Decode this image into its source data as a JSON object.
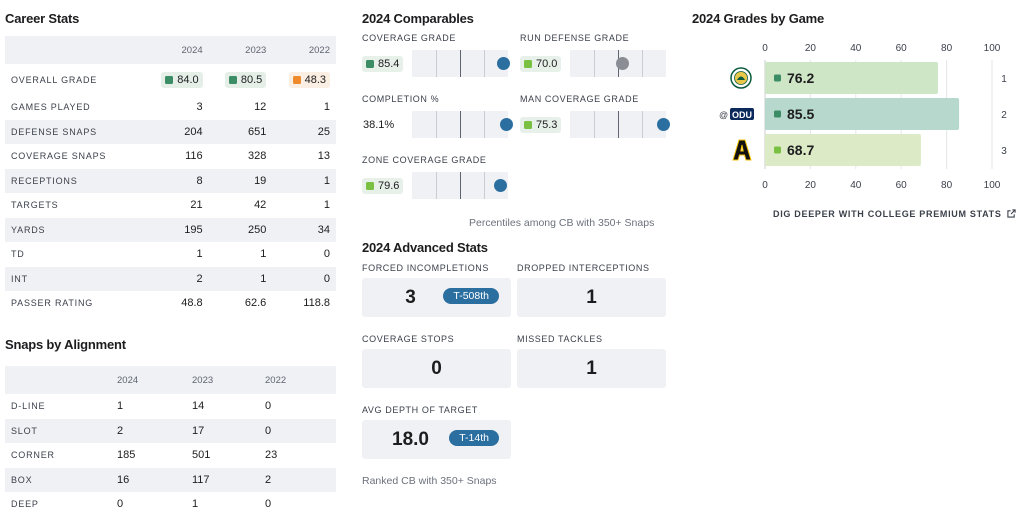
{
  "career": {
    "title": "Career Stats",
    "years": [
      "2024",
      "2023",
      "2022"
    ],
    "overall": {
      "label": "OVERALL GRADE",
      "values": [
        {
          "value": "84.0",
          "color": "#3a8d64",
          "bg": "#e5efe8"
        },
        {
          "value": "80.5",
          "color": "#3a8d64",
          "bg": "#e5efe8"
        },
        {
          "value": "48.3",
          "color": "#ef8a2d",
          "bg": "#fbeee2"
        }
      ]
    },
    "rows": [
      {
        "label": "GAMES PLAYED",
        "values": [
          "3",
          "12",
          "1"
        ]
      },
      {
        "label": "DEFENSE SNAPS",
        "values": [
          "204",
          "651",
          "25"
        ]
      },
      {
        "label": "COVERAGE SNAPS",
        "values": [
          "116",
          "328",
          "13"
        ]
      },
      {
        "label": "RECEPTIONS",
        "values": [
          "8",
          "19",
          "1"
        ]
      },
      {
        "label": "TARGETS",
        "values": [
          "21",
          "42",
          "1"
        ]
      },
      {
        "label": "YARDS",
        "values": [
          "195",
          "250",
          "34"
        ]
      },
      {
        "label": "TD",
        "values": [
          "1",
          "1",
          "0"
        ]
      },
      {
        "label": "INT",
        "values": [
          "2",
          "1",
          "0"
        ]
      },
      {
        "label": "PASSER RATING",
        "values": [
          "48.8",
          "62.6",
          "118.8"
        ]
      }
    ]
  },
  "snaps": {
    "title": "Snaps by Alignment",
    "years": [
      "2024",
      "2023",
      "2022"
    ],
    "rows": [
      {
        "label": "D-LINE",
        "values": [
          "1",
          "14",
          "0"
        ]
      },
      {
        "label": "SLOT",
        "values": [
          "2",
          "17",
          "0"
        ]
      },
      {
        "label": "CORNER",
        "values": [
          "185",
          "501",
          "23"
        ]
      },
      {
        "label": "BOX",
        "values": [
          "16",
          "117",
          "2"
        ]
      },
      {
        "label": "DEEP",
        "values": [
          "0",
          "1",
          "0"
        ]
      }
    ]
  },
  "comparables": {
    "title": "2024 Comparables",
    "items": [
      {
        "label": "COVERAGE GRADE",
        "value": "85.4",
        "sq_color": "#3a8d64",
        "percentile": 0.95,
        "dot": "blue"
      },
      {
        "label": "RUN DEFENSE GRADE",
        "value": "70.0",
        "sq_color": "#7ac143",
        "percentile": 0.55,
        "dot": "gray"
      },
      {
        "label": "COMPLETION %",
        "value": "38.1%",
        "sq_color": "",
        "percentile": 0.98,
        "dot": "blue"
      },
      {
        "label": "MAN COVERAGE GRADE",
        "value": "75.3",
        "sq_color": "#7ac143",
        "percentile": 0.97,
        "dot": "blue"
      },
      {
        "label": "ZONE COVERAGE GRADE",
        "value": "79.6",
        "sq_color": "#7ac143",
        "percentile": 0.92,
        "dot": "blue"
      }
    ],
    "note": "Percentiles among CB with 350+ Snaps"
  },
  "advanced": {
    "title": "2024 Advanced Stats",
    "items": [
      {
        "label": "FORCED INCOMPLETIONS",
        "value": "3",
        "rank": "T-508th"
      },
      {
        "label": "DROPPED INTERCEPTIONS",
        "value": "1",
        "rank": ""
      },
      {
        "label": "COVERAGE STOPS",
        "value": "0",
        "rank": ""
      },
      {
        "label": "MISSED TACKLES",
        "value": "1",
        "rank": ""
      },
      {
        "label": "AVG DEPTH OF TARGET",
        "value": "18.0",
        "rank": "T-14th"
      }
    ],
    "note": "Ranked CB with 350+ Snaps"
  },
  "grades_by_game": {
    "title": "2024 Grades by Game",
    "link": "DIG DEEPER WITH COLLEGE PREMIUM STATS",
    "chart_data": {
      "type": "bar",
      "orientation": "horizontal",
      "xlim": [
        0,
        100
      ],
      "ticks": [
        "0",
        "20",
        "40",
        "60",
        "80",
        "100"
      ],
      "games": [
        {
          "week": "1",
          "prefix": "",
          "opponent_logo": "team-seal-logo",
          "value": 76.2,
          "label": "76.2",
          "bar_color": "#cfe6c6",
          "sq_color": "#3a8d64"
        },
        {
          "week": "2",
          "prefix": "@",
          "opponent_logo": "odu-logo",
          "opponent_text": "ODU",
          "value": 85.5,
          "label": "85.5",
          "bar_color": "#b7d8cc",
          "sq_color": "#3a8d64"
        },
        {
          "week": "3",
          "prefix": "",
          "opponent_logo": "app-state-a-logo",
          "value": 68.7,
          "label": "68.7",
          "bar_color": "#dcebc6",
          "sq_color": "#7ac143"
        }
      ]
    }
  }
}
